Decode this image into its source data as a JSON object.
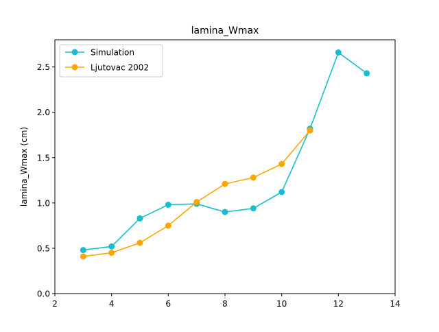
{
  "chart_data": {
    "type": "line",
    "title": "lamina_Wmax",
    "xlabel": "",
    "ylabel": "lamina_Wmax (cm)",
    "xlim": [
      2,
      14
    ],
    "ylim": [
      0.0,
      2.8
    ],
    "xticks": [
      2,
      4,
      6,
      8,
      10,
      12,
      14
    ],
    "xtick_labels": [
      "2",
      "4",
      "6",
      "8",
      "10",
      "12",
      "14"
    ],
    "yticks": [
      0.0,
      0.5,
      1.0,
      1.5,
      2.0,
      2.5
    ],
    "ytick_labels": [
      "0.0",
      "0.5",
      "1.0",
      "1.5",
      "2.0",
      "2.5"
    ],
    "grid": false,
    "legend_position": "top-left",
    "series": [
      {
        "name": "Simulation",
        "color": "#17becf",
        "marker": "circle",
        "x": [
          3,
          4,
          5,
          6,
          7,
          8,
          9,
          10,
          11,
          12,
          13
        ],
        "y": [
          0.48,
          0.52,
          0.83,
          0.98,
          0.99,
          0.9,
          0.94,
          1.12,
          1.82,
          2.66,
          2.43
        ]
      },
      {
        "name": "Ljutovac 2002",
        "color": "#ffa500",
        "marker": "circle",
        "x": [
          3,
          4,
          5,
          6,
          7,
          8,
          9,
          10,
          11
        ],
        "y": [
          0.41,
          0.45,
          0.56,
          0.75,
          1.01,
          1.21,
          1.28,
          1.43,
          1.8
        ]
      }
    ]
  }
}
